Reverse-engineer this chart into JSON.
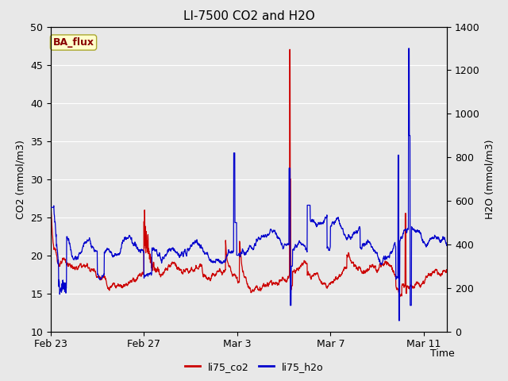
{
  "title": "LI-7500 CO2 and H2O",
  "ylabel_left": "CO2 (mmol/m3)",
  "ylabel_right": "H2O (mmol/m3)",
  "xlabel": "Time",
  "ylim_left": [
    10,
    50
  ],
  "ylim_right": [
    0,
    1400
  ],
  "xtick_labels": [
    "Feb 23",
    "Feb 27",
    "Mar 3",
    "Mar 7",
    "Mar 11"
  ],
  "xtick_positions": [
    0,
    4,
    8,
    12,
    16
  ],
  "yticks_left": [
    10,
    15,
    20,
    25,
    30,
    35,
    40,
    45,
    50
  ],
  "yticks_right": [
    0,
    200,
    400,
    600,
    800,
    1000,
    1200,
    1400
  ],
  "fig_bg_color": "#e8e8e8",
  "plot_bg_color": "#e8e8e8",
  "grid_color": "#ffffff",
  "legend_labels": [
    "li75_co2",
    "li75_h2o"
  ],
  "co2_color": "#cc0000",
  "h2o_color": "#0000cc",
  "annotation_text": "BA_flux",
  "annotation_bg": "#ffffcc",
  "annotation_border": "#aaa830",
  "annotation_text_color": "#880000",
  "title_fontsize": 11,
  "axis_fontsize": 9,
  "tick_fontsize": 9,
  "legend_fontsize": 9,
  "n_days": 17,
  "n_points": 2000
}
